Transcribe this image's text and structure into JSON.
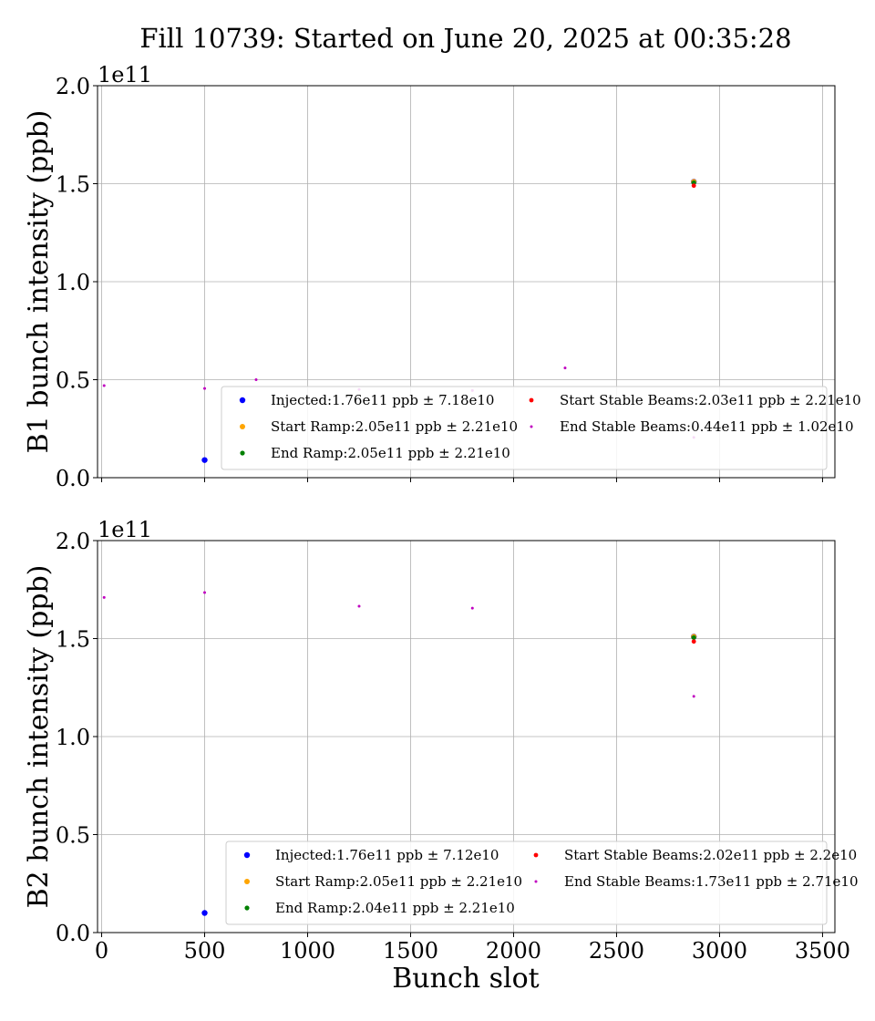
{
  "figure": {
    "title": "Fill 10739: Started on June 20, 2025 at 00:35:28",
    "xlabel": "Bunch slot"
  },
  "colors": {
    "Injected": "#0000ff",
    "Start Ramp": "#ffa500",
    "End Ramp": "#008000",
    "Start Stable Beams": "#ff0000",
    "End Stable Beams": "#c000c0"
  },
  "chart_data": [
    {
      "type": "scatter",
      "ylabel": "B1 bunch intensity (ppb)",
      "y_multiplier": "1e11",
      "xlim": [
        -20,
        3560
      ],
      "ylim": [
        0,
        2.0
      ],
      "xticks": [
        0,
        500,
        1000,
        1500,
        2000,
        2500,
        3000,
        3500
      ],
      "xticklabels": [
        "",
        "",
        "",
        "",
        "",
        "",
        "",
        ""
      ],
      "yticks": [
        0,
        0.5,
        1.0,
        1.5,
        2.0
      ],
      "yticklabels": [
        "0.0",
        "0.5",
        "1.0",
        "1.5",
        "2.0"
      ],
      "grid": true,
      "legend": "lower-right",
      "series": [
        {
          "name": "Injected:1.76e11 ppb ± 7.18e10",
          "key": "Injected",
          "x": [
            500,
            2875
          ],
          "y": [
            0.09,
            1.51
          ]
        },
        {
          "name": "Start Ramp:2.05e11 ppb ± 2.21e10",
          "key": "Start Ramp",
          "x": [
            2875
          ],
          "y": [
            1.51
          ]
        },
        {
          "name": "End Ramp:2.05e11 ppb ± 2.21e10",
          "key": "End Ramp",
          "x": [
            2875
          ],
          "y": [
            1.505
          ]
        },
        {
          "name": "Start Stable Beams:2.03e11 ppb ± 2.21e10",
          "key": "Start Stable Beams",
          "x": [
            2875
          ],
          "y": [
            1.49
          ]
        },
        {
          "name": "End Stable Beams:0.44e11 ppb ± 1.02e10",
          "key": "End Stable Beams",
          "x": [
            12,
            500,
            750,
            1250,
            1800,
            2250,
            2875
          ],
          "y": [
            0.47,
            0.455,
            0.5,
            0.45,
            0.445,
            0.56,
            0.205
          ]
        }
      ]
    },
    {
      "type": "scatter",
      "ylabel": "B2 bunch intensity (ppb)",
      "y_multiplier": "1e11",
      "xlim": [
        -20,
        3560
      ],
      "ylim": [
        0,
        2.0
      ],
      "xticks": [
        0,
        500,
        1000,
        1500,
        2000,
        2500,
        3000,
        3500
      ],
      "xticklabels": [
        "0",
        "500",
        "1000",
        "1500",
        "2000",
        "2500",
        "3000",
        "3500"
      ],
      "yticks": [
        0,
        0.5,
        1.0,
        1.5,
        2.0
      ],
      "yticklabels": [
        "0.0",
        "0.5",
        "1.0",
        "1.5",
        "2.0"
      ],
      "grid": true,
      "legend": "lower-right",
      "series": [
        {
          "name": "Injected:1.76e11 ppb ± 7.12e10",
          "key": "Injected",
          "x": [
            500,
            2875
          ],
          "y": [
            0.1,
            1.51
          ]
        },
        {
          "name": "Start Ramp:2.05e11 ppb ± 2.21e10",
          "key": "Start Ramp",
          "x": [
            2875
          ],
          "y": [
            1.51
          ]
        },
        {
          "name": "End Ramp:2.04e11 ppb ± 2.21e10",
          "key": "End Ramp",
          "x": [
            2875
          ],
          "y": [
            1.505
          ]
        },
        {
          "name": "Start Stable Beams:2.02e11 ppb ± 2.2e10",
          "key": "Start Stable Beams",
          "x": [
            2875
          ],
          "y": [
            1.485
          ]
        },
        {
          "name": "End Stable Beams:1.73e11 ppb ± 2.71e10",
          "key": "End Stable Beams",
          "x": [
            12,
            500,
            1250,
            1800,
            2875
          ],
          "y": [
            1.71,
            1.735,
            1.665,
            1.655,
            1.205
          ]
        }
      ]
    }
  ]
}
